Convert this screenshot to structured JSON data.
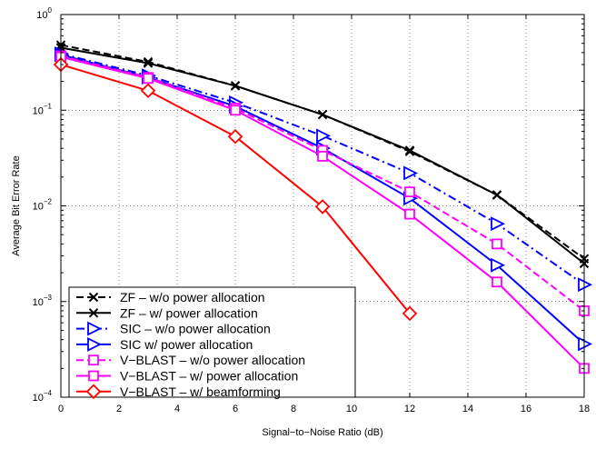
{
  "chart_data": {
    "type": "line",
    "xlabel": "Signal−to−Noise Ratio (dB)",
    "ylabel": "Average Bit Error Rate",
    "xlim": [
      0,
      18
    ],
    "ylim": [
      0.0001,
      1
    ],
    "yscale": "log",
    "xticks": [
      "0",
      "2",
      "4",
      "6",
      "8",
      "10",
      "12",
      "14",
      "16",
      "18"
    ],
    "yticks": [
      {
        "mantissa": "10",
        "exp": "0"
      },
      {
        "mantissa": "10",
        "exp": "−1"
      },
      {
        "mantissa": "10",
        "exp": "−2"
      },
      {
        "mantissa": "10",
        "exp": "−3"
      },
      {
        "mantissa": "10",
        "exp": "−4"
      }
    ],
    "grid": true,
    "legend_position": "bottom-left",
    "x": [
      0,
      3,
      6,
      9,
      12,
      15,
      18
    ],
    "series": [
      {
        "name": "ZF – w/o power allocation",
        "color": "#000000",
        "dash": "dashed",
        "marker": "x",
        "x": [
          0,
          3,
          6,
          9,
          12,
          15,
          18
        ],
        "y": [
          0.48,
          0.32,
          0.18,
          0.09,
          0.037,
          0.013,
          0.0028
        ]
      },
      {
        "name": "ZF – w/ power allocation",
        "color": "#000000",
        "dash": "solid",
        "marker": "x",
        "x": [
          0,
          3,
          6,
          9,
          12,
          15,
          18
        ],
        "y": [
          0.45,
          0.31,
          0.18,
          0.09,
          0.038,
          0.013,
          0.0025
        ]
      },
      {
        "name": "SIC – w/o power allocation",
        "color": "#0000ff",
        "dash": "dashdot",
        "marker": "triangle-right",
        "x": [
          0,
          3,
          6,
          9,
          12,
          15,
          18
        ],
        "y": [
          0.39,
          0.23,
          0.12,
          0.054,
          0.022,
          0.0065,
          0.0015
        ]
      },
      {
        "name": "SIC w/ power allocation",
        "color": "#0000ff",
        "dash": "solid",
        "marker": "triangle-right",
        "x": [
          0,
          3,
          6,
          9,
          12,
          15,
          18
        ],
        "y": [
          0.38,
          0.22,
          0.11,
          0.04,
          0.012,
          0.0024,
          0.00036
        ]
      },
      {
        "name": "V−BLAST – w/o power allocation",
        "color": "#ff00ff",
        "dash": "dashed",
        "marker": "square",
        "x": [
          0,
          3,
          6,
          9,
          12,
          15,
          18
        ],
        "y": [
          0.37,
          0.22,
          0.105,
          0.038,
          0.014,
          0.004,
          0.0008
        ]
      },
      {
        "name": "V−BLAST – w/ power allocation",
        "color": "#ff00ff",
        "dash": "solid",
        "marker": "square",
        "x": [
          0,
          3,
          6,
          9,
          12,
          15,
          18
        ],
        "y": [
          0.36,
          0.215,
          0.1,
          0.033,
          0.0082,
          0.0016,
          0.0002
        ]
      },
      {
        "name": "V−BLAST – w/ beamforming",
        "color": "#ff0000",
        "dash": "solid",
        "marker": "diamond",
        "x": [
          0,
          3,
          6,
          9,
          12
        ],
        "y": [
          0.3,
          0.16,
          0.053,
          0.0098,
          0.00075
        ]
      }
    ]
  }
}
